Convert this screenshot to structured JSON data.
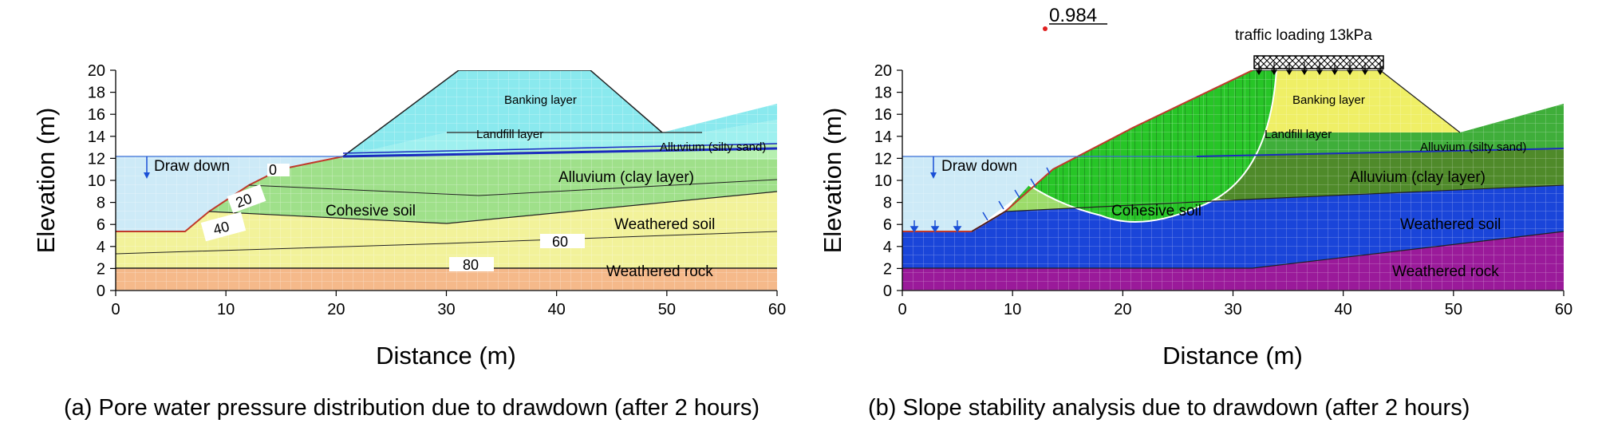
{
  "x_axis": {
    "label": "Distance (m)",
    "ticks": [
      "0",
      "10",
      "20",
      "30",
      "40",
      "50",
      "60"
    ]
  },
  "y_axis": {
    "label": "Elevation (m)",
    "ticks": [
      "0",
      "2",
      "4",
      "6",
      "8",
      "10",
      "12",
      "14",
      "16",
      "18",
      "20"
    ]
  },
  "panel_a": {
    "caption": "(a) Pore water pressure distribution due to drawdown (after 2 hours)",
    "drawdown": "Draw down",
    "layers": {
      "banking": "Banking layer",
      "landfill": "Landfill layer",
      "alluvium_sand": "Alluvium (silty sand)",
      "alluvium_clay": "Alluvium (clay layer)",
      "cohesive": "Cohesive soil",
      "weathered_soil": "Weathered soil",
      "weathered_rock": "Weathered rock"
    },
    "contours": [
      "0",
      "20",
      "40",
      "60",
      "80"
    ]
  },
  "panel_b": {
    "caption": "(b) Slope stability analysis due to drawdown (after 2 hours)",
    "drawdown": "Draw down",
    "factor_of_safety": "0.984",
    "traffic": "traffic loading 13kPa",
    "layers": {
      "banking": "Banking layer",
      "landfill": "Landfill layer",
      "alluvium_sand": "Alluvium (silty sand)",
      "alluvium_clay": "Alluvium (clay layer)",
      "cohesive": "Cohesive soil",
      "weathered_soil": "Weathered soil",
      "weathered_rock": "Weathered rock"
    }
  },
  "colors": {
    "water": "#cdeaf7",
    "a_rock": "#f5b98a",
    "a_soil": "#f2f29a",
    "a_cohesive": "#9fe08a",
    "a_clay": "#b6f0b0",
    "a_banking": "#8ae9ee",
    "a_landfill": "#9ef0ef",
    "b_rock": "#9a1a9a",
    "b_soil": "#1a45d9",
    "b_cohesive": "#9cdb6a",
    "b_clay": "#4f8a2a",
    "b_landfill": "#3fae3a",
    "b_banking": "#efef66",
    "b_slip": "#27c527"
  }
}
